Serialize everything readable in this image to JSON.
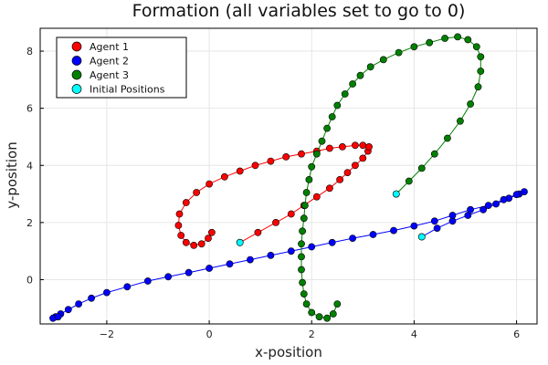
{
  "chart_data": {
    "type": "scatter",
    "title": "Formation (all variables set to go to 0)",
    "xlabel": "x-position",
    "ylabel": "y-position",
    "xlim": [
      -3.3,
      6.4
    ],
    "ylim": [
      -1.55,
      8.8
    ],
    "xticks": [
      -2,
      0,
      2,
      4,
      6
    ],
    "yticks": [
      0,
      2,
      4,
      6,
      8
    ],
    "grid": true,
    "legend_position": "top-left",
    "series": [
      {
        "name": "Agent 1",
        "color": "#ff0000",
        "points": [
          [
            0.6,
            1.3
          ],
          [
            0.95,
            1.65
          ],
          [
            1.3,
            2.0
          ],
          [
            1.6,
            2.3
          ],
          [
            1.85,
            2.6
          ],
          [
            2.1,
            2.9
          ],
          [
            2.35,
            3.2
          ],
          [
            2.55,
            3.5
          ],
          [
            2.7,
            3.75
          ],
          [
            2.85,
            4.0
          ],
          [
            3.0,
            4.25
          ],
          [
            3.1,
            4.5
          ],
          [
            3.12,
            4.65
          ],
          [
            3.0,
            4.7
          ],
          [
            2.85,
            4.7
          ],
          [
            2.6,
            4.65
          ],
          [
            2.35,
            4.6
          ],
          [
            2.1,
            4.5
          ],
          [
            1.8,
            4.4
          ],
          [
            1.5,
            4.3
          ],
          [
            1.2,
            4.15
          ],
          [
            0.9,
            4.0
          ],
          [
            0.6,
            3.8
          ],
          [
            0.3,
            3.6
          ],
          [
            0.0,
            3.35
          ],
          [
            -0.25,
            3.05
          ],
          [
            -0.45,
            2.7
          ],
          [
            -0.58,
            2.3
          ],
          [
            -0.6,
            1.9
          ],
          [
            -0.55,
            1.55
          ],
          [
            -0.45,
            1.3
          ],
          [
            -0.3,
            1.2
          ],
          [
            -0.15,
            1.25
          ],
          [
            -0.02,
            1.45
          ],
          [
            0.05,
            1.65
          ]
        ]
      },
      {
        "name": "Agent 2",
        "color": "#0000ff",
        "points": [
          [
            4.15,
            1.5
          ],
          [
            4.45,
            1.8
          ],
          [
            4.75,
            2.05
          ],
          [
            5.05,
            2.25
          ],
          [
            5.35,
            2.45
          ],
          [
            5.6,
            2.65
          ],
          [
            5.85,
            2.85
          ],
          [
            6.05,
            3.0
          ],
          [
            6.15,
            3.08
          ],
          [
            6.0,
            2.98
          ],
          [
            5.75,
            2.8
          ],
          [
            5.45,
            2.6
          ],
          [
            5.1,
            2.45
          ],
          [
            4.75,
            2.25
          ],
          [
            4.4,
            2.05
          ],
          [
            4.0,
            1.88
          ],
          [
            3.6,
            1.72
          ],
          [
            3.2,
            1.58
          ],
          [
            2.8,
            1.45
          ],
          [
            2.4,
            1.3
          ],
          [
            2.0,
            1.15
          ],
          [
            1.6,
            1.0
          ],
          [
            1.2,
            0.85
          ],
          [
            0.8,
            0.7
          ],
          [
            0.4,
            0.55
          ],
          [
            0.0,
            0.4
          ],
          [
            -0.4,
            0.25
          ],
          [
            -0.8,
            0.1
          ],
          [
            -1.2,
            -0.05
          ],
          [
            -1.6,
            -0.25
          ],
          [
            -2.0,
            -0.45
          ],
          [
            -2.3,
            -0.65
          ],
          [
            -2.55,
            -0.85
          ],
          [
            -2.75,
            -1.05
          ],
          [
            -2.9,
            -1.2
          ],
          [
            -3.0,
            -1.3
          ],
          [
            -3.05,
            -1.35
          ],
          [
            -2.95,
            -1.3
          ]
        ]
      },
      {
        "name": "Agent 3",
        "color": "#008000",
        "points": [
          [
            3.65,
            3.0
          ],
          [
            3.9,
            3.45
          ],
          [
            4.15,
            3.9
          ],
          [
            4.4,
            4.4
          ],
          [
            4.65,
            4.95
          ],
          [
            4.9,
            5.55
          ],
          [
            5.1,
            6.15
          ],
          [
            5.25,
            6.75
          ],
          [
            5.3,
            7.3
          ],
          [
            5.3,
            7.8
          ],
          [
            5.22,
            8.15
          ],
          [
            5.05,
            8.4
          ],
          [
            4.85,
            8.5
          ],
          [
            4.6,
            8.45
          ],
          [
            4.3,
            8.3
          ],
          [
            4.0,
            8.15
          ],
          [
            3.7,
            7.95
          ],
          [
            3.4,
            7.7
          ],
          [
            3.15,
            7.45
          ],
          [
            2.95,
            7.15
          ],
          [
            2.8,
            6.85
          ],
          [
            2.65,
            6.5
          ],
          [
            2.5,
            6.1
          ],
          [
            2.4,
            5.7
          ],
          [
            2.3,
            5.3
          ],
          [
            2.2,
            4.85
          ],
          [
            2.1,
            4.4
          ],
          [
            2.0,
            3.95
          ],
          [
            1.95,
            3.5
          ],
          [
            1.9,
            3.05
          ],
          [
            1.87,
            2.6
          ],
          [
            1.85,
            2.15
          ],
          [
            1.82,
            1.7
          ],
          [
            1.8,
            1.25
          ],
          [
            1.8,
            0.8
          ],
          [
            1.8,
            0.35
          ],
          [
            1.82,
            -0.1
          ],
          [
            1.85,
            -0.5
          ],
          [
            1.9,
            -0.85
          ],
          [
            2.0,
            -1.15
          ],
          [
            2.15,
            -1.3
          ],
          [
            2.3,
            -1.35
          ],
          [
            2.42,
            -1.2
          ],
          [
            2.5,
            -0.85
          ]
        ]
      },
      {
        "name": "Initial Positions",
        "color": "#00ffff",
        "points": [
          [
            0.6,
            1.3
          ],
          [
            4.15,
            1.5
          ],
          [
            3.65,
            3.0
          ]
        ]
      }
    ]
  }
}
